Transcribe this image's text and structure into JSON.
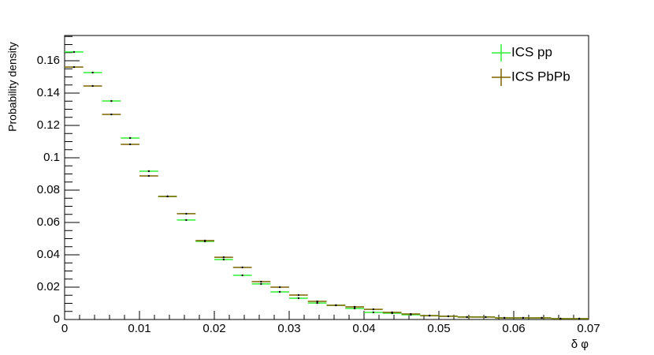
{
  "chart_data": {
    "type": "histogram",
    "xlabel": "δ φ",
    "ylabel": "Probability density",
    "bins": [
      0,
      0.0025,
      0.005,
      0.0075,
      0.01,
      0.0125,
      0.015,
      0.0175,
      0.02,
      0.0225,
      0.025,
      0.0275,
      0.03,
      0.0325,
      0.035,
      0.0375,
      0.04,
      0.0425,
      0.045,
      0.0475,
      0.05,
      0.0525,
      0.055,
      0.0575,
      0.06,
      0.0625,
      0.065,
      0.0675,
      0.07
    ],
    "series": [
      {
        "name": "ICS pp",
        "color": "#33ee33",
        "values": [
          0.1654,
          0.1527,
          0.1351,
          0.1122,
          0.0917,
          0.0761,
          0.0615,
          0.0483,
          0.0371,
          0.0273,
          0.022,
          0.0171,
          0.0132,
          0.0102,
          0.0088,
          0.0068,
          0.0044,
          0.0039,
          0.0029,
          0.0024,
          0.002,
          0.0015,
          0.0015,
          0.001,
          0.001,
          0.001,
          0.0005,
          0.0005
        ]
      },
      {
        "name": "ICS PbPb",
        "color": "#7a6400",
        "values": [
          0.1561,
          0.1444,
          0.1268,
          0.1083,
          0.0888,
          0.0761,
          0.0654,
          0.0488,
          0.0385,
          0.0322,
          0.0234,
          0.02,
          0.0151,
          0.0112,
          0.0088,
          0.0078,
          0.0063,
          0.0044,
          0.0034,
          0.0024,
          0.002,
          0.0015,
          0.0015,
          0.001,
          0.001,
          0.001,
          0.0005,
          0.0005
        ]
      }
    ],
    "xlim": [
      0,
      0.07
    ],
    "ylim": [
      0,
      0.1756
    ],
    "xticks": [
      0,
      0.01,
      0.02,
      0.03,
      0.04,
      0.05,
      0.06,
      0.07
    ],
    "yticks": [
      0,
      0.02,
      0.04,
      0.06,
      0.08,
      0.1,
      0.12,
      0.14,
      0.16
    ],
    "legend": "top-right"
  }
}
